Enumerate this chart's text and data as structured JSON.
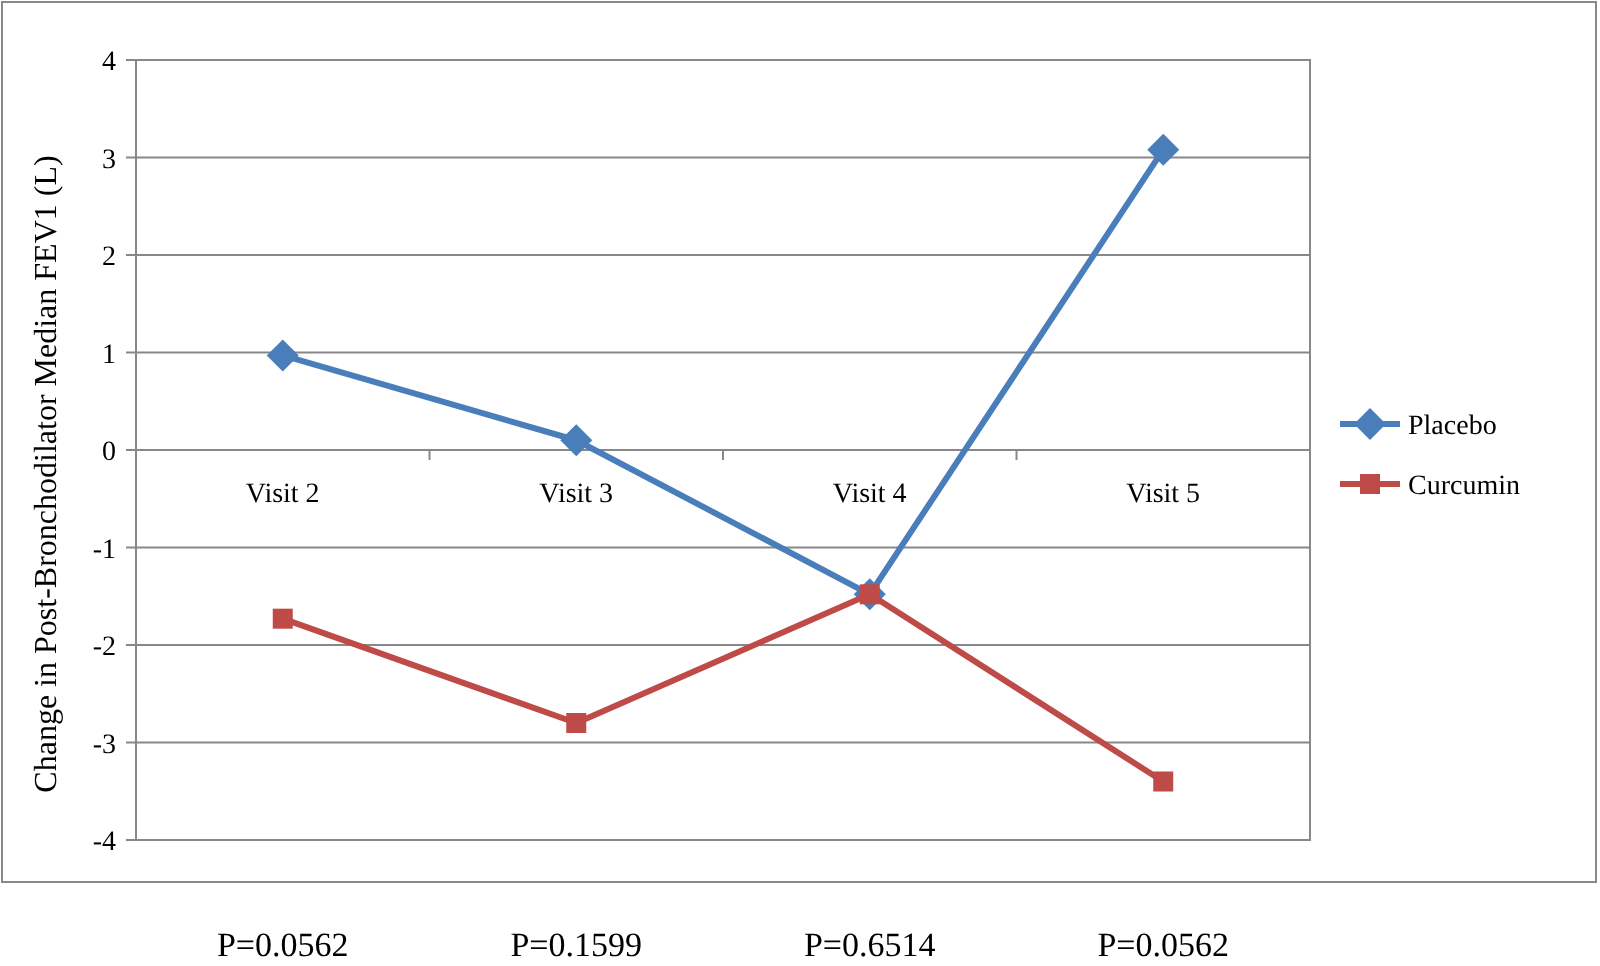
{
  "chart_data": {
    "type": "line",
    "ylabel": "Change in Post-Bronchodilator Median FEV1 (L)",
    "categories": [
      "Visit 2",
      "Visit 3",
      "Visit 4",
      "Visit 5"
    ],
    "series": [
      {
        "name": "Placebo",
        "color": "#4a7ebb",
        "marker": "diamond",
        "values": [
          0.97,
          0.1,
          -1.48,
          3.08
        ]
      },
      {
        "name": "Curcumin",
        "color": "#be4b48",
        "marker": "square",
        "values": [
          -1.73,
          -2.8,
          -1.48,
          -3.4
        ]
      }
    ],
    "ylim": [
      -4,
      4
    ],
    "yticks": [
      -4,
      -3,
      -2,
      -1,
      0,
      1,
      2,
      3,
      4
    ],
    "grid": "y",
    "legend": "right",
    "annotations": [
      "P=0.0562",
      "P=0.1599",
      "P=0.6514",
      "P=0.0562"
    ]
  }
}
